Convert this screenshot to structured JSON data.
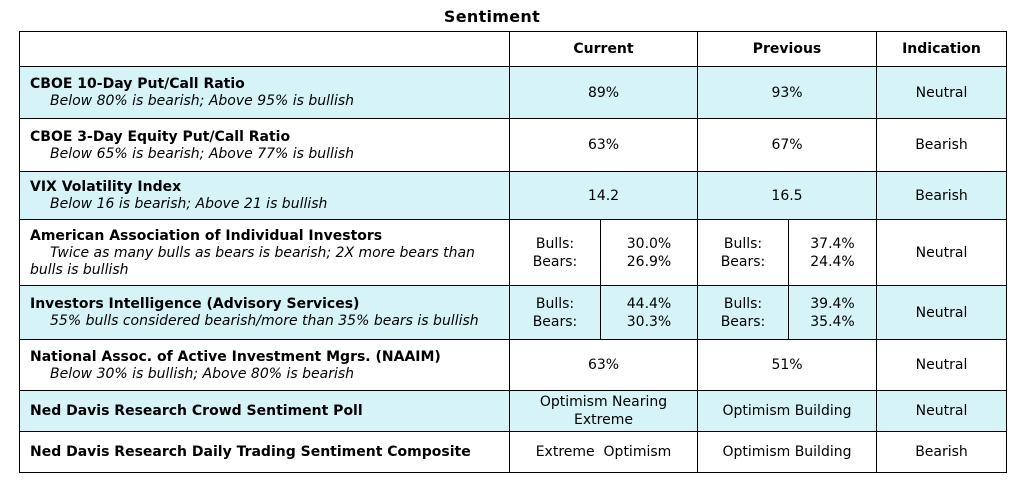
{
  "title": "Sentiment",
  "headers": {
    "indicator": "",
    "current": "Current",
    "previous": "Previous",
    "indication": "Indication"
  },
  "rows": [
    {
      "name": "CBOE 10-Day Put/Call Ratio",
      "desc": "Below 80% is bearish; Above 95% is bullish",
      "current": "89%",
      "previous": "93%",
      "indication": "Neutral"
    },
    {
      "name": "CBOE 3-Day Equity Put/Call Ratio",
      "desc": "Below 65% is bearish; Above 77% is bullish",
      "current": "63%",
      "previous": "67%",
      "indication": "Bearish"
    },
    {
      "name": "VIX Volatility Index",
      "desc": "Below 16 is bearish; Above 21 is bullish",
      "current": "14.2",
      "previous": "16.5",
      "indication": "Bearish"
    },
    {
      "name": "American Association of Individual Investors",
      "desc_line1": "Twice as many bulls as bears is bearish; 2X more bears than",
      "desc_line2": "bulls is bullish",
      "current": {
        "bulls_label": "Bulls:",
        "bears_label": "Bears:",
        "bulls": "30.0%",
        "bears": "26.9%"
      },
      "previous": {
        "bulls_label": "Bulls:",
        "bears_label": "Bears:",
        "bulls": "37.4%",
        "bears": "24.4%"
      },
      "indication": "Neutral"
    },
    {
      "name": "Investors Intelligence (Advisory Services)",
      "desc": "55% bulls considered bearish/more than 35% bears is bullish",
      "current": {
        "bulls_label": "Bulls:",
        "bears_label": "Bears:",
        "bulls": "44.4%",
        "bears": "30.3%"
      },
      "previous": {
        "bulls_label": "Bulls:",
        "bears_label": "Bears:",
        "bulls": "39.4%",
        "bears": "35.4%"
      },
      "indication": "Neutral"
    },
    {
      "name": "National Assoc. of Active Investment Mgrs. (NAAIM)",
      "desc": "Below 30% is bullish; Above 80% is bearish",
      "current": "63%",
      "previous": "51%",
      "indication": "Neutral"
    },
    {
      "name": "Ned Davis Research Crowd Sentiment Poll",
      "current_line1": "Optimism Nearing",
      "current_line2": "Extreme",
      "previous": "Optimism Building",
      "indication": "Neutral"
    },
    {
      "name": "Ned Davis Research Daily Trading Sentiment Composite",
      "current": "Extreme  Optimism",
      "previous": "Optimism Building",
      "indication": "Bearish"
    }
  ],
  "colors": {
    "highlight_row": "#d6f3f8",
    "border": "#000000"
  }
}
